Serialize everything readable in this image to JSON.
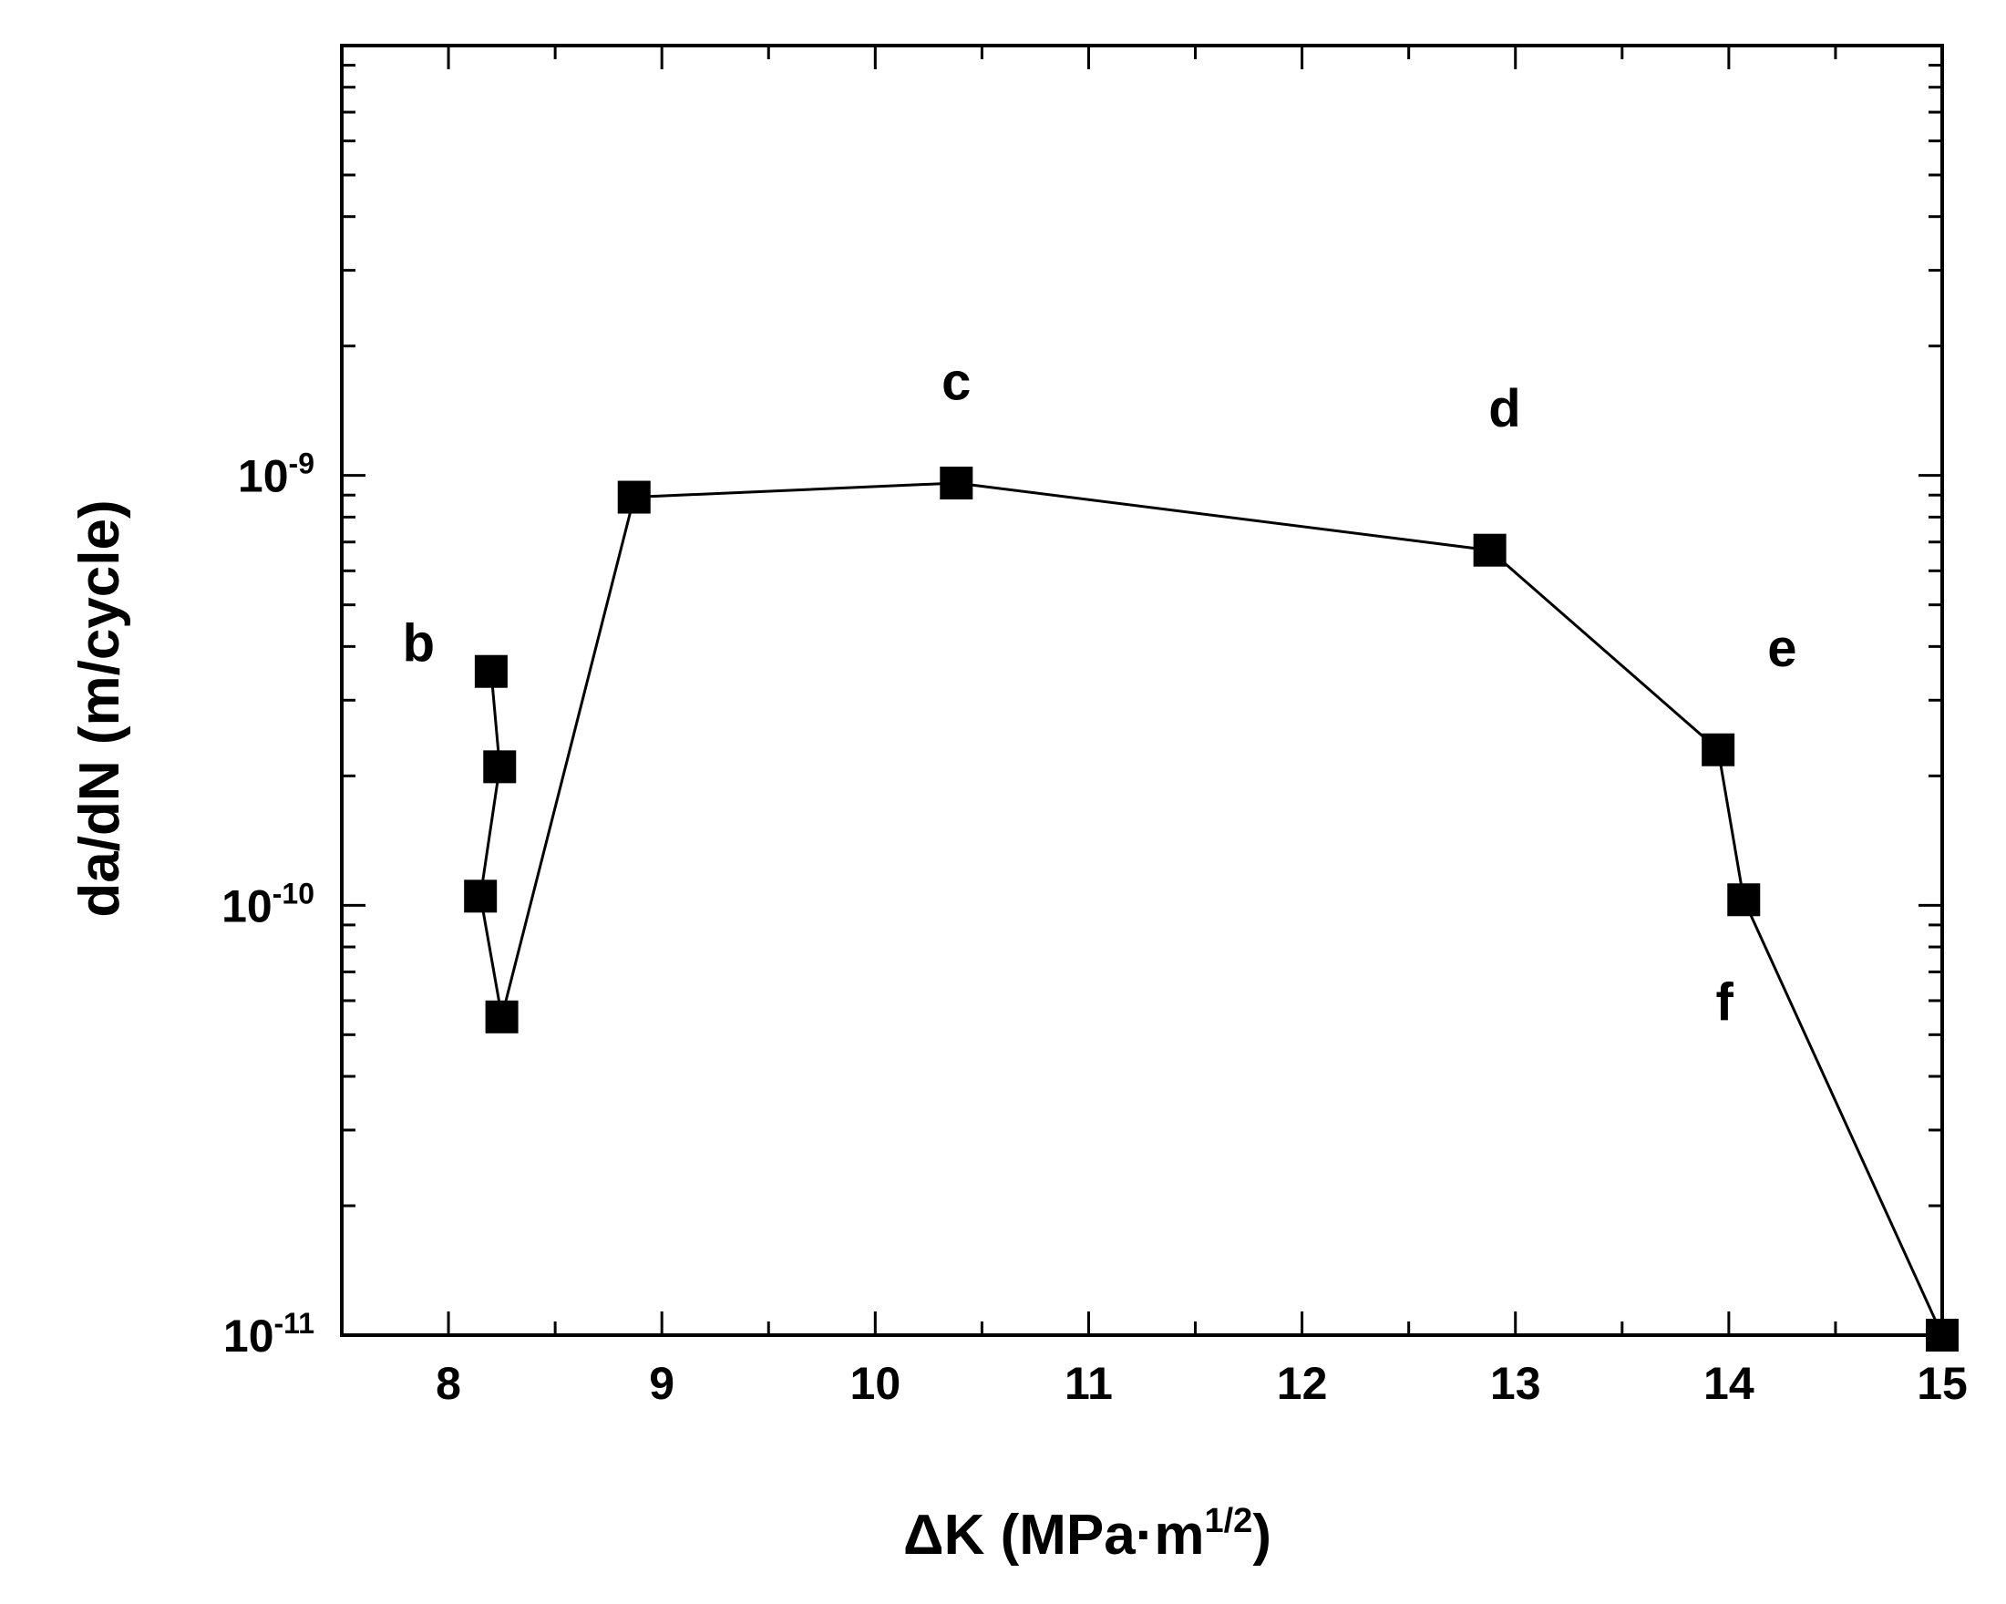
{
  "chart_data": {
    "type": "line",
    "xlabel": {
      "base": "ΔK (MPa·m",
      "exp": "1/2",
      "close": ")"
    },
    "ylabel": "da/dN (m/cycle)",
    "xlim": [
      7.5,
      15
    ],
    "ylim": [
      1e-11,
      1e-08
    ],
    "yscale": "log",
    "grid": false,
    "x_ticks": [
      {
        "value": 8,
        "label": "8"
      },
      {
        "value": 9,
        "label": "9"
      },
      {
        "value": 10,
        "label": "10"
      },
      {
        "value": 11,
        "label": "11"
      },
      {
        "value": 12,
        "label": "12"
      },
      {
        "value": 13,
        "label": "13"
      },
      {
        "value": 14,
        "label": "14"
      },
      {
        "value": 15,
        "label": "15"
      }
    ],
    "y_ticks": [
      {
        "value": 1e-11,
        "base": "10",
        "exp": "-11"
      },
      {
        "value": 1e-10,
        "base": "10",
        "exp": "-10"
      },
      {
        "value": 1e-09,
        "base": "10",
        "exp": "-9"
      }
    ],
    "series": [
      {
        "marker": "square",
        "color": "#000000",
        "points": [
          {
            "x": 8.2,
            "y": 3.5e-10
          },
          {
            "x": 8.24,
            "y": 2.1e-10
          },
          {
            "x": 8.15,
            "y": 1.05e-10
          },
          {
            "x": 8.25,
            "y": 5.5e-11
          },
          {
            "x": 8.87,
            "y": 8.9e-10
          },
          {
            "x": 10.38,
            "y": 9.6e-10
          },
          {
            "x": 12.88,
            "y": 6.7e-10
          },
          {
            "x": 13.95,
            "y": 2.3e-10
          },
          {
            "x": 14.07,
            "y": 1.03e-10
          },
          {
            "x": 15.0,
            "y": 1e-11
          }
        ]
      }
    ],
    "annotations": [
      {
        "text": "b",
        "x": 7.86,
        "y": 3.7e-10
      },
      {
        "text": "c",
        "x": 10.38,
        "y": 1.5e-09
      },
      {
        "text": "d",
        "x": 12.95,
        "y": 1.3e-09
      },
      {
        "text": "e",
        "x": 14.25,
        "y": 3.6e-10
      },
      {
        "text": "f",
        "x": 13.98,
        "y": 5.4e-11
      }
    ]
  }
}
